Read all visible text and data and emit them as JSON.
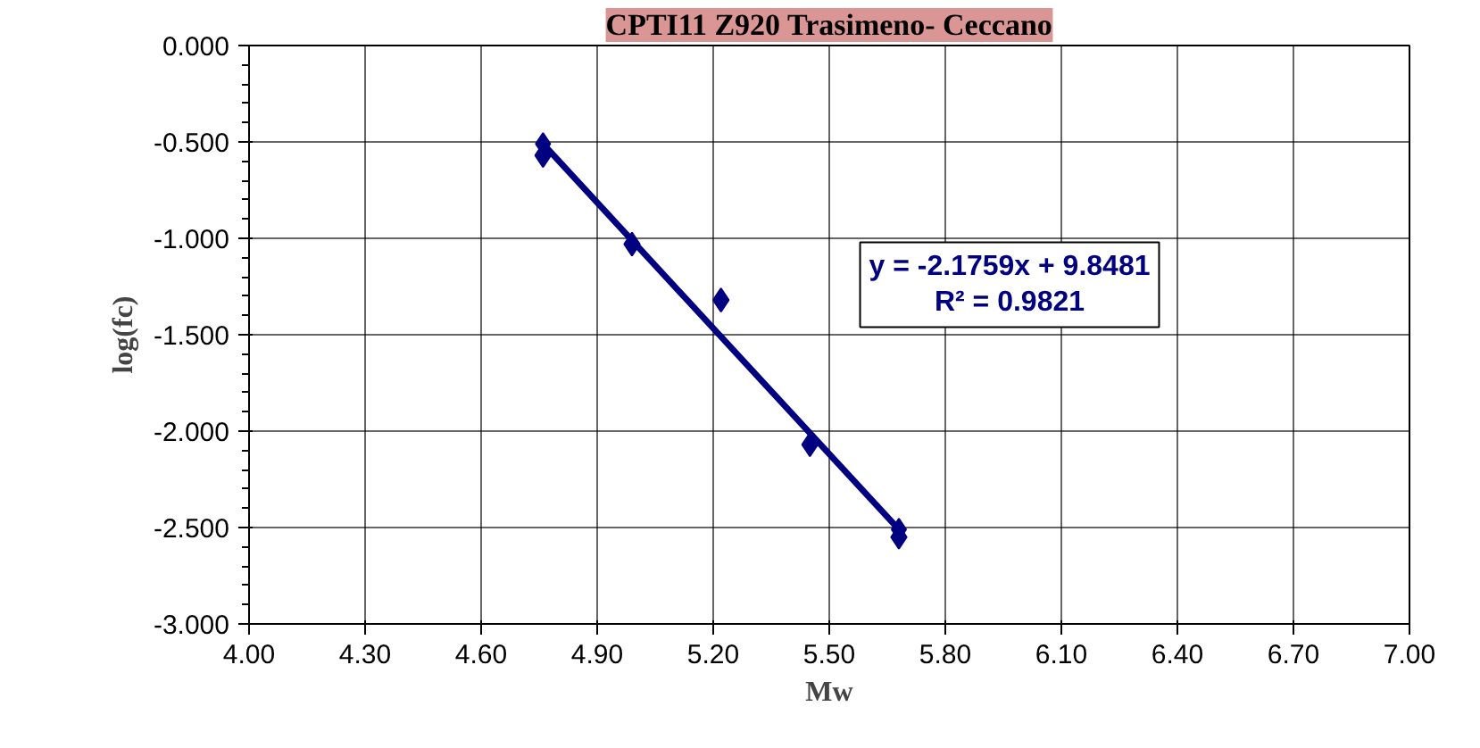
{
  "chart_data": {
    "type": "scatter",
    "title": "CPTI11 Z920 Trasimeno- Ceccano",
    "xlabel": "Mw",
    "ylabel": "log(fc)",
    "x": [
      4.76,
      4.99,
      5.22,
      5.45,
      5.68
    ],
    "series": [
      {
        "color": "#000080",
        "values": [
          -0.57,
          -1.03,
          -1.32,
          -2.07,
          -2.55
        ]
      },
      {
        "type": "line",
        "color": "#000080",
        "x": [
          4.76,
          5.68
        ],
        "values": [
          -0.51,
          -2.51
        ]
      }
    ],
    "marker": "diamond",
    "annotations": [
      "y = -2.1759x + 9.8481\nR² = 0.9821"
    ],
    "xlim": [
      4,
      7
    ],
    "ylim": [
      -3,
      0
    ],
    "xticks": [
      {
        "value": 4,
        "label": "4.00"
      },
      {
        "value": 4.3,
        "label": "4.30"
      },
      {
        "value": 4.6,
        "label": "4.60"
      },
      {
        "value": 4.9,
        "label": "4.90"
      },
      {
        "value": 5.2,
        "label": "5.20"
      },
      {
        "value": 5.5,
        "label": "5.50"
      },
      {
        "value": 5.8,
        "label": "5.80"
      },
      {
        "value": 6.1,
        "label": "6.10"
      },
      {
        "value": 6.4,
        "label": "6.40"
      },
      {
        "value": 6.7,
        "label": "6.70"
      },
      {
        "value": 7,
        "label": "7.00"
      }
    ],
    "yticks": [
      {
        "value": 0,
        "label": "0.000"
      },
      {
        "value": -0.5,
        "label": "-0.500"
      },
      {
        "value": -1,
        "label": "-1.000"
      },
      {
        "value": -1.5,
        "label": "-1.500"
      },
      {
        "value": -2,
        "label": "-2.000"
      },
      {
        "value": -2.5,
        "label": "-2.500"
      },
      {
        "value": -3,
        "label": "-3.000"
      }
    ],
    "grid": true
  }
}
